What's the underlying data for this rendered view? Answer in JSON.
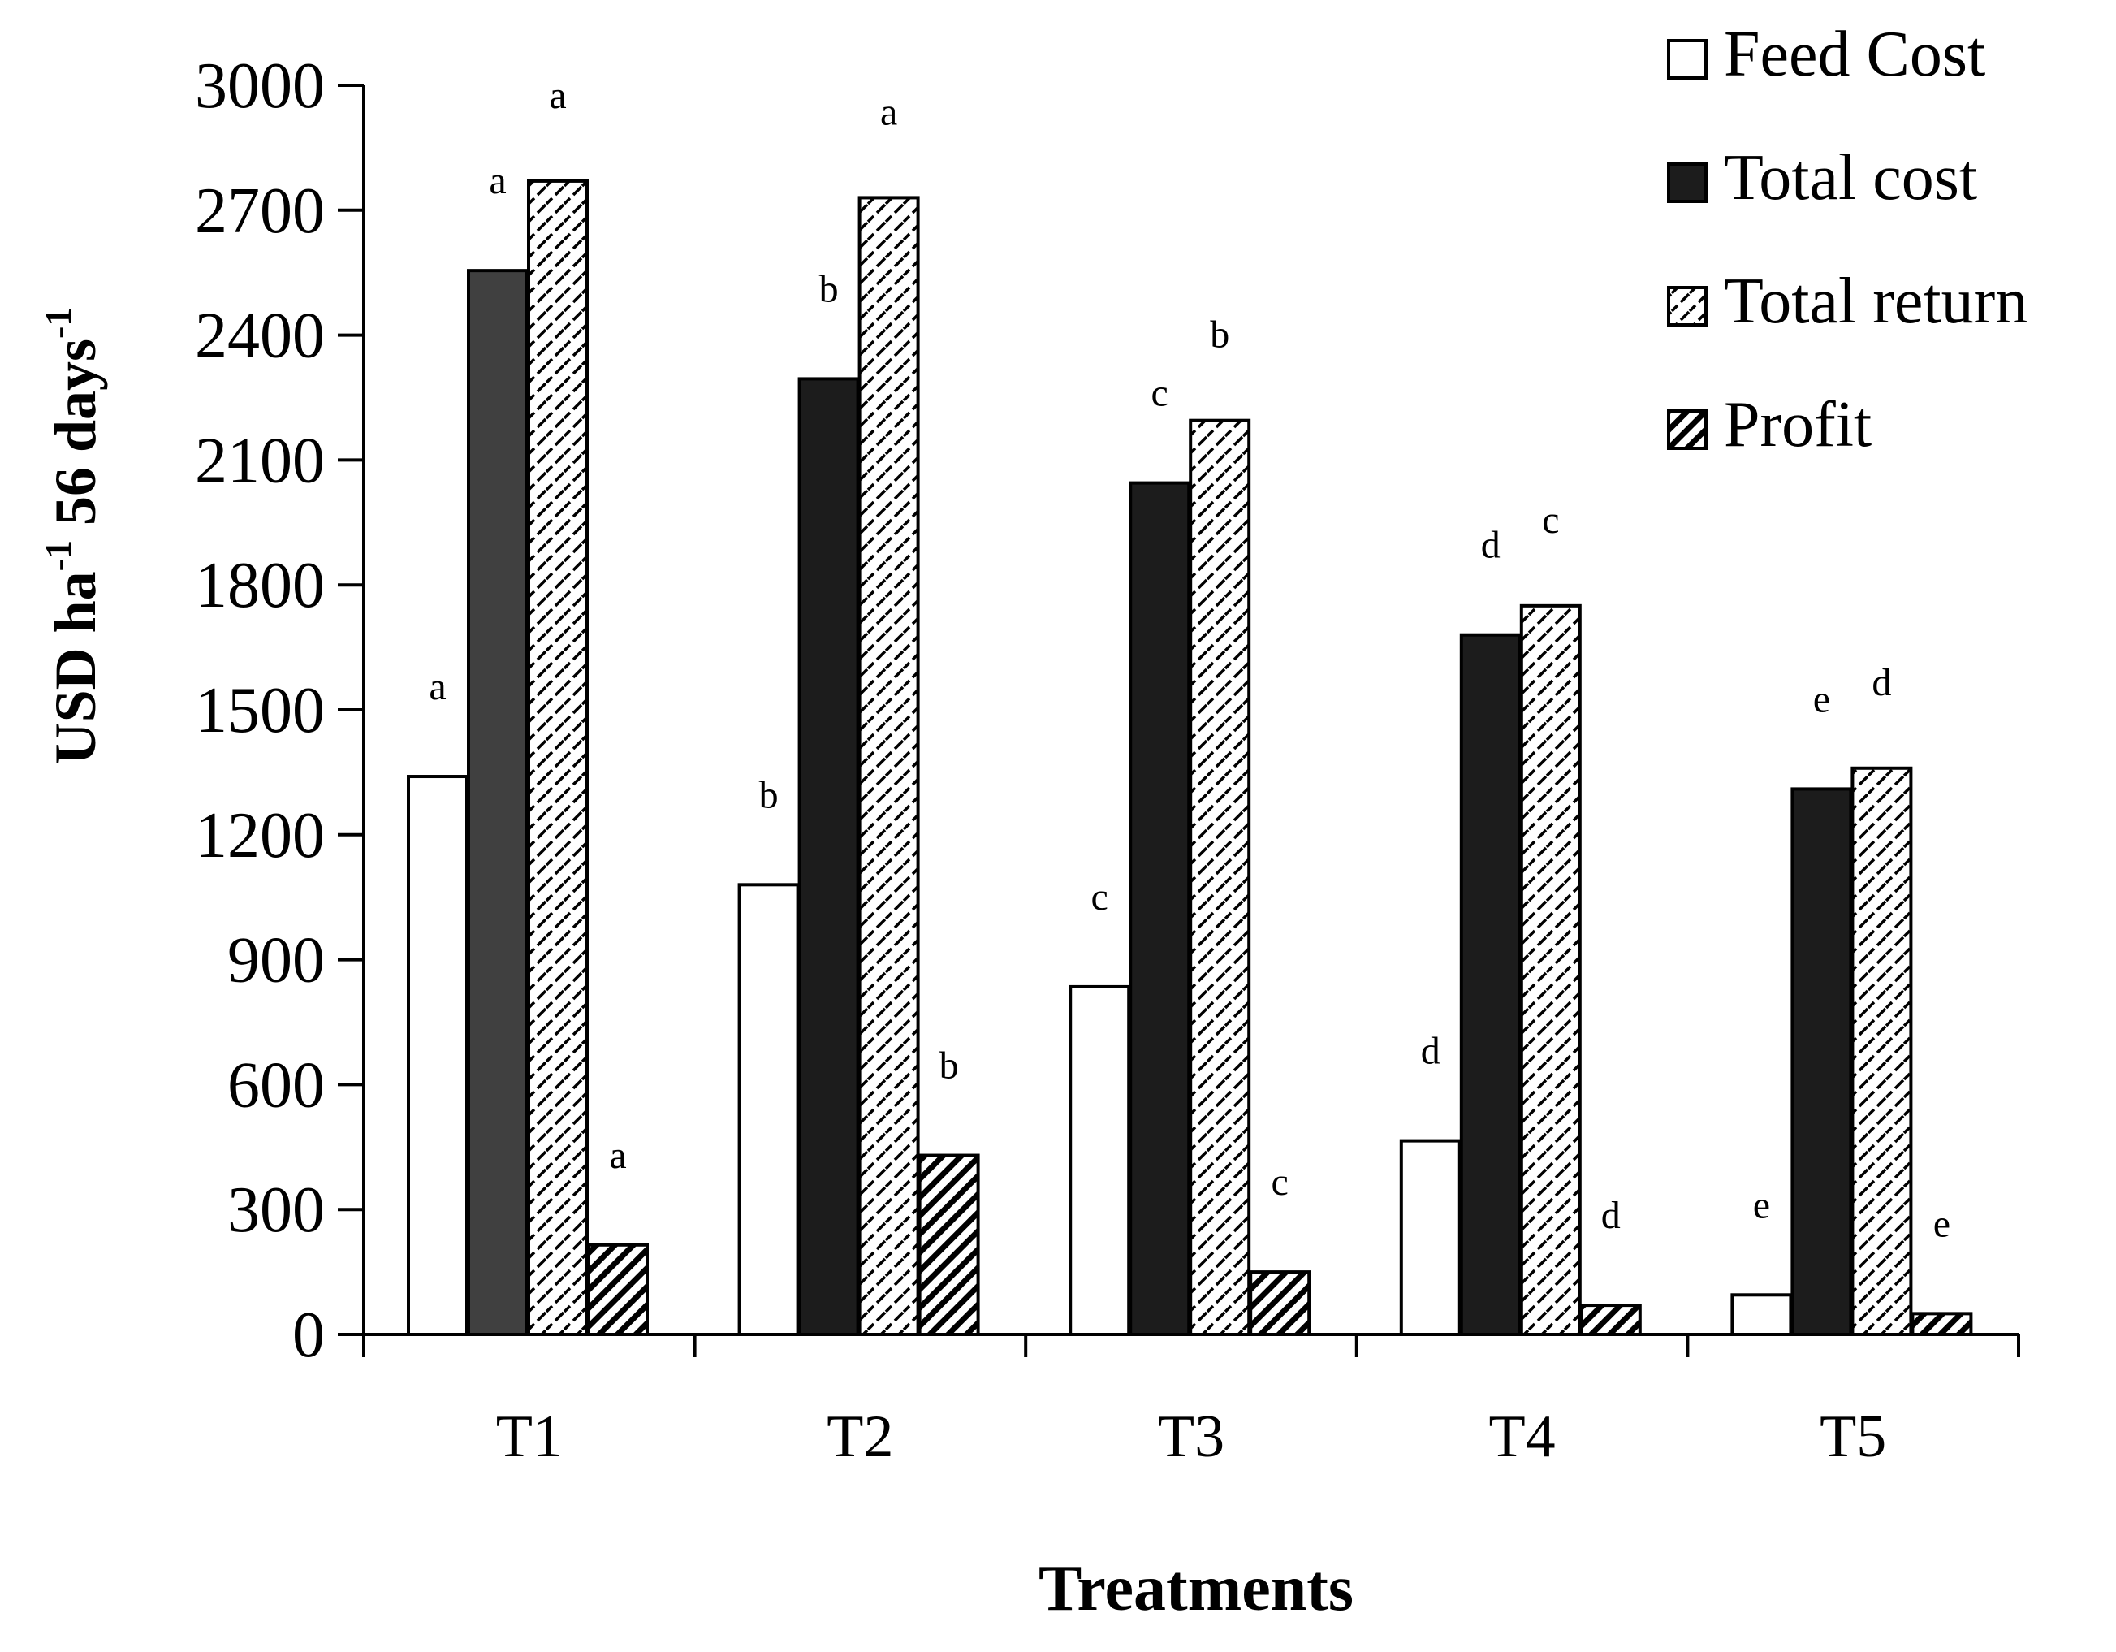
{
  "chart_data": {
    "type": "bar",
    "title": "",
    "xlabel": "Treatments",
    "ylabel": {
      "prefix": "USD ha",
      "sup1": "-1",
      "middle": " 56 days",
      "sup2": "-1"
    },
    "ylim": [
      0,
      3000
    ],
    "yticks": [
      "0",
      "300",
      "600",
      "900",
      "1200",
      "1500",
      "1800",
      "2100",
      "2400",
      "2700",
      "3000"
    ],
    "categories": [
      "T1",
      "T2",
      "T3",
      "T4",
      "T5"
    ],
    "legend_position": "top-right",
    "series": [
      {
        "name": "Feed Cost",
        "style": "white",
        "values": [
          1340,
          1080,
          835,
          465,
          95
        ],
        "letters": [
          "a",
          "b",
          "c",
          "d",
          "e"
        ]
      },
      {
        "name": "Total cost",
        "style": "solid-dark",
        "values": [
          2555,
          2295,
          2045,
          1680,
          1310
        ],
        "letters": [
          "a",
          "b",
          "c",
          "d",
          "e"
        ]
      },
      {
        "name": "Total return",
        "style": "dashed-diagonal",
        "values": [
          2770,
          2730,
          2195,
          1750,
          1360
        ],
        "letters": [
          "a",
          "a",
          "b",
          "c",
          "d"
        ]
      },
      {
        "name": "Profit",
        "style": "bold-diagonal",
        "values": [
          215,
          430,
          150,
          70,
          50
        ],
        "letters": [
          "a",
          "b",
          "c",
          "d",
          "e"
        ]
      }
    ],
    "colors": {
      "axis": "#000000",
      "feed_fill": "#ffffff",
      "total_cost_fill_first": "#404040",
      "total_cost_fill": "#1c1c1c",
      "pattern_bg": "#ffffff",
      "pattern_ink": "#000000"
    }
  }
}
